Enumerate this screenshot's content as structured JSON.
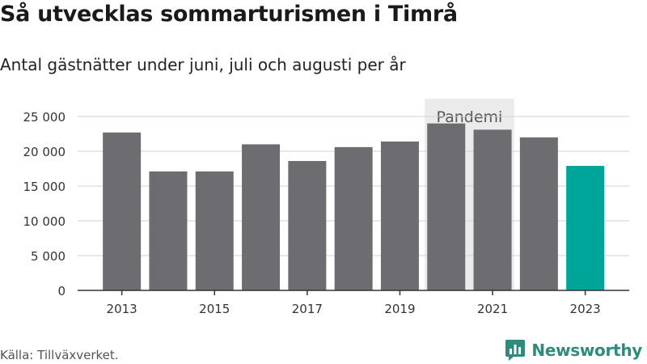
{
  "header": {
    "title": "Så utvecklas sommarturismen i Timrå",
    "subtitle": "Antal gästnätter under juni, juli och augusti per år"
  },
  "footer": {
    "source": "Källa: Tillväxverket.",
    "brand": "Newsworthy"
  },
  "colors": {
    "bar": "#6d6c70",
    "highlight": "#00a59a",
    "pandemic_band": "#ebebeb",
    "brand": "#2e8b7d"
  },
  "chart_data": {
    "type": "bar",
    "title": "Så utvecklas sommarturismen i Timrå",
    "subtitle": "Antal gästnätter under juni, juli och augusti per år",
    "xlabel": "",
    "ylabel": "",
    "categories": [
      "2013",
      "2014",
      "2015",
      "2016",
      "2017",
      "2018",
      "2019",
      "2020",
      "2021",
      "2022",
      "2023"
    ],
    "values": [
      22700,
      17100,
      17100,
      21000,
      18600,
      20600,
      21400,
      24000,
      23100,
      22000,
      17900
    ],
    "highlight_category": "2023",
    "x_tick_labels": [
      "2013",
      "2015",
      "2017",
      "2019",
      "2021",
      "2023"
    ],
    "y_tick_labels": [
      "0",
      "5 000",
      "10 000",
      "15 000",
      "20 000",
      "25 000"
    ],
    "y_ticks": [
      0,
      5000,
      10000,
      15000,
      20000,
      25000
    ],
    "ylim": [
      0,
      25000
    ],
    "grid": true,
    "annotation": {
      "label": "Pandemi",
      "from": "2020",
      "to": "2021"
    }
  }
}
